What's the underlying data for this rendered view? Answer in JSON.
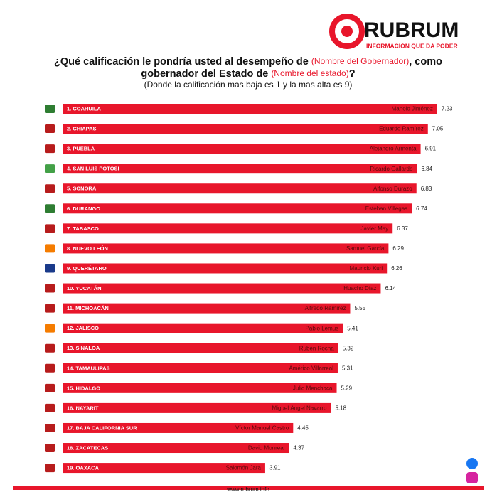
{
  "brand": {
    "name": "RUBRUM",
    "tagline": "INFORMACIÓN QUE DA PODER",
    "url": "www.rubrum.info"
  },
  "chart_data": {
    "type": "bar",
    "title_parts": [
      "¿Qué calificación le pondría usted al desempeño de ",
      "(Nombre del Gobernador)",
      ", como",
      "gobernador del Estado de ",
      "(Nombre del estado)",
      "?"
    ],
    "subtitle": "(Donde la calificación mas baja es 1 y la mas alta es 9)",
    "categories": [
      "1. COAHUILA",
      "2. CHIAPAS",
      "3. PUEBLA",
      "4. SAN LUIS POTOSÍ",
      "5. SONORA",
      "6. DURANGO",
      "7. TABASCO",
      "8. NUEVO LEÓN",
      "9. QUERÉTARO",
      "10. YUCATÁN",
      "11. MICHOACÁN",
      "12. JALISCO",
      "13. SINALOA",
      "14. TAMAULIPAS",
      "15. HIDALGO",
      "16. NAYARIT",
      "17. BAJA CALIFORNIA SUR",
      "18. ZACATECAS",
      "19. OAXACA"
    ],
    "names": [
      "Manolo Jiménez",
      "Eduardo Ramírez",
      "Alejandro Armenta",
      "Ricardo Gallardo",
      "Alfonso Durazo",
      "Esteban Villegas",
      "Javier May",
      "Samuel García",
      "Mauricio Kuri",
      "Huacho Díaz",
      "Alfredo Ramírez",
      "Pablo Lemus",
      "Rubén Rocha",
      "Américo Villarreal",
      "Julio Menchaca",
      "Miguel Ángel Navarro",
      "Víctor Manuel Castro",
      "David Monreal",
      "Salomón Jara"
    ],
    "values": [
      7.23,
      7.05,
      6.91,
      6.84,
      6.83,
      6.74,
      6.37,
      6.29,
      6.26,
      6.14,
      5.55,
      5.41,
      5.32,
      5.31,
      5.29,
      5.18,
      4.45,
      4.37,
      3.91
    ],
    "icon_colors": [
      "#2e7d32",
      "#b71c1c",
      "#b71c1c",
      "#43a047",
      "#b71c1c",
      "#2e7d32",
      "#b71c1c",
      "#f57c00",
      "#1a3a8a",
      "#b71c1c",
      "#b71c1c",
      "#f57c00",
      "#b71c1c",
      "#b71c1c",
      "#b71c1c",
      "#b71c1c",
      "#b71c1c",
      "#b71c1c",
      "#b71c1c"
    ],
    "color": "#e8162b",
    "xlim": [
      0,
      8
    ]
  }
}
